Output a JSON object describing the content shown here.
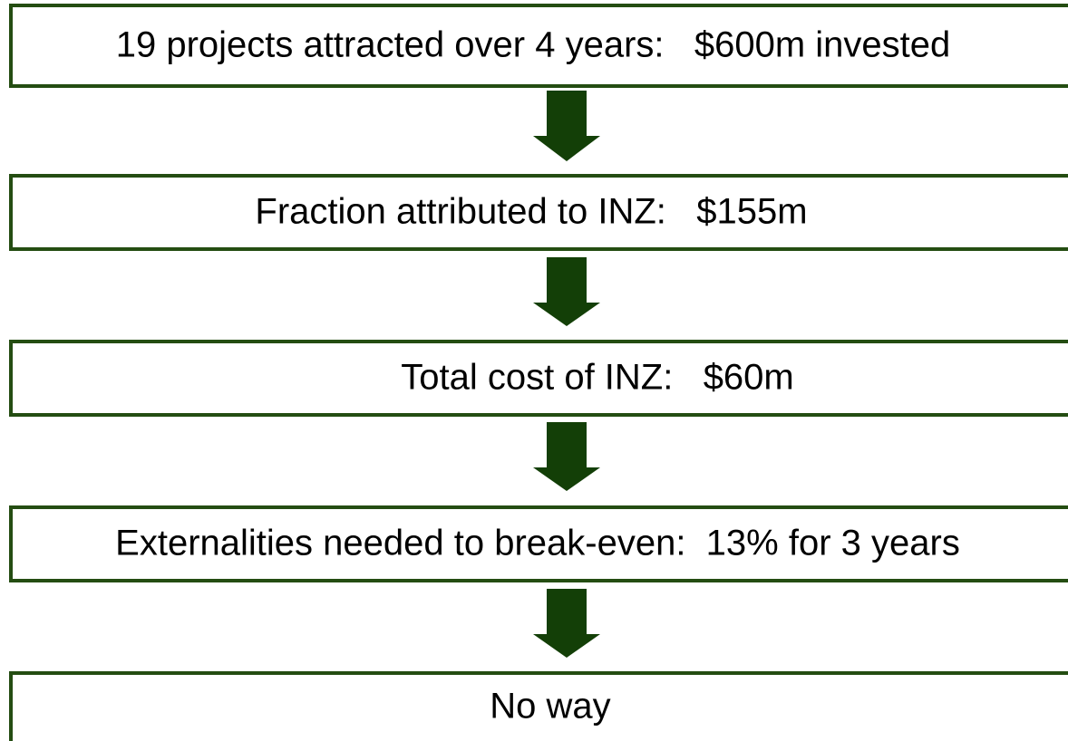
{
  "nodes": [
    {
      "label": "19 projects attracted over 4 years:   $600m invested"
    },
    {
      "label": "Fraction attributed to INZ:   $155m"
    },
    {
      "label": "Total cost of INZ:   $60m"
    },
    {
      "label": "Externalities needed to break-even:  13% for 3 years"
    },
    {
      "label": "No way"
    }
  ]
}
